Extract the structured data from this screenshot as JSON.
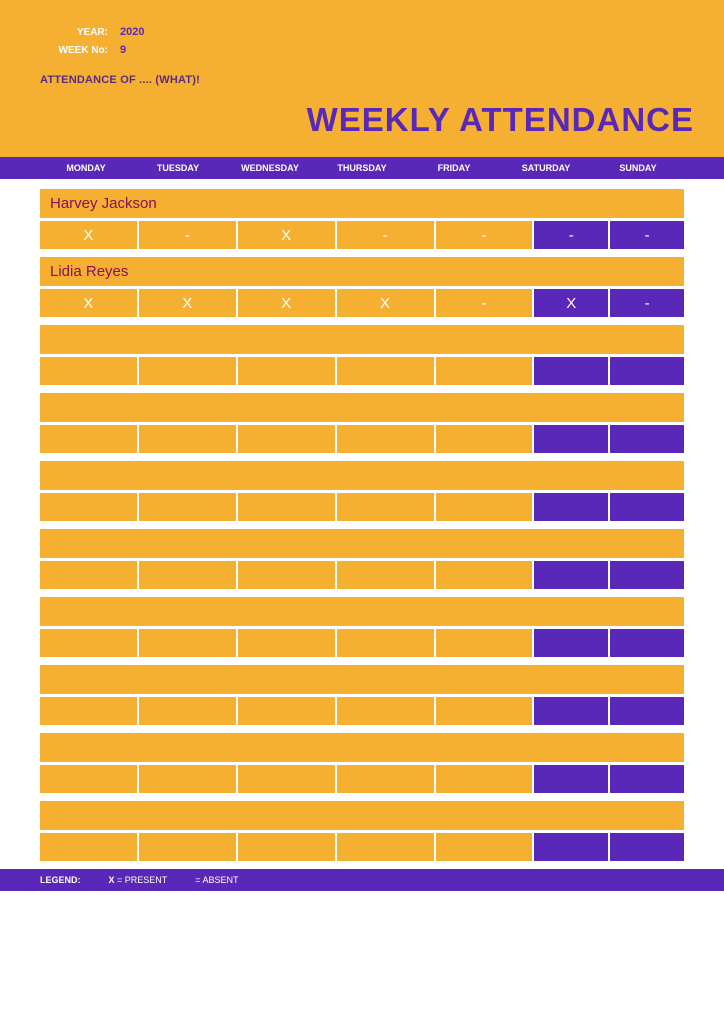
{
  "colors": {
    "orange": "#f5b031",
    "purple": "#5a28b8",
    "magenta": "#8a0e5a",
    "white": "#ffffff"
  },
  "header": {
    "year_label": "YEAR:",
    "year_value": "2020",
    "week_label": "WEEK No:",
    "week_value": "9",
    "subtitle": "ATTENDANCE OF .... (WHAT)!",
    "title": "WEEKLY ATTENDANCE"
  },
  "days": [
    "MONDAY",
    "TUESDAY",
    "WEDNESDAY",
    "THURSDAY",
    "FRIDAY",
    "SATURDAY",
    "SUNDAY"
  ],
  "weekday_count": 5,
  "people": [
    {
      "name": "Harvey Jackson",
      "marks": [
        "X",
        "-",
        "X",
        "-",
        "-",
        "-",
        "-"
      ]
    },
    {
      "name": "Lidia Reyes",
      "marks": [
        "X",
        "X",
        "X",
        "X",
        "-",
        "X",
        "-"
      ]
    },
    {
      "name": "",
      "marks": [
        "",
        "",
        "",
        "",
        "",
        "",
        ""
      ]
    },
    {
      "name": "",
      "marks": [
        "",
        "",
        "",
        "",
        "",
        "",
        ""
      ]
    },
    {
      "name": "",
      "marks": [
        "",
        "",
        "",
        "",
        "",
        "",
        ""
      ]
    },
    {
      "name": "",
      "marks": [
        "",
        "",
        "",
        "",
        "",
        "",
        ""
      ]
    },
    {
      "name": "",
      "marks": [
        "",
        "",
        "",
        "",
        "",
        "",
        ""
      ]
    },
    {
      "name": "",
      "marks": [
        "",
        "",
        "",
        "",
        "",
        "",
        ""
      ]
    },
    {
      "name": "",
      "marks": [
        "",
        "",
        "",
        "",
        "",
        "",
        ""
      ]
    },
    {
      "name": "",
      "marks": [
        "",
        "",
        "",
        "",
        "",
        "",
        ""
      ]
    }
  ],
  "legend": {
    "label": "LEGEND:",
    "present_key": "X",
    "present_text": " = PRESENT",
    "absent_key": "",
    "absent_text": " = ABSENT"
  }
}
